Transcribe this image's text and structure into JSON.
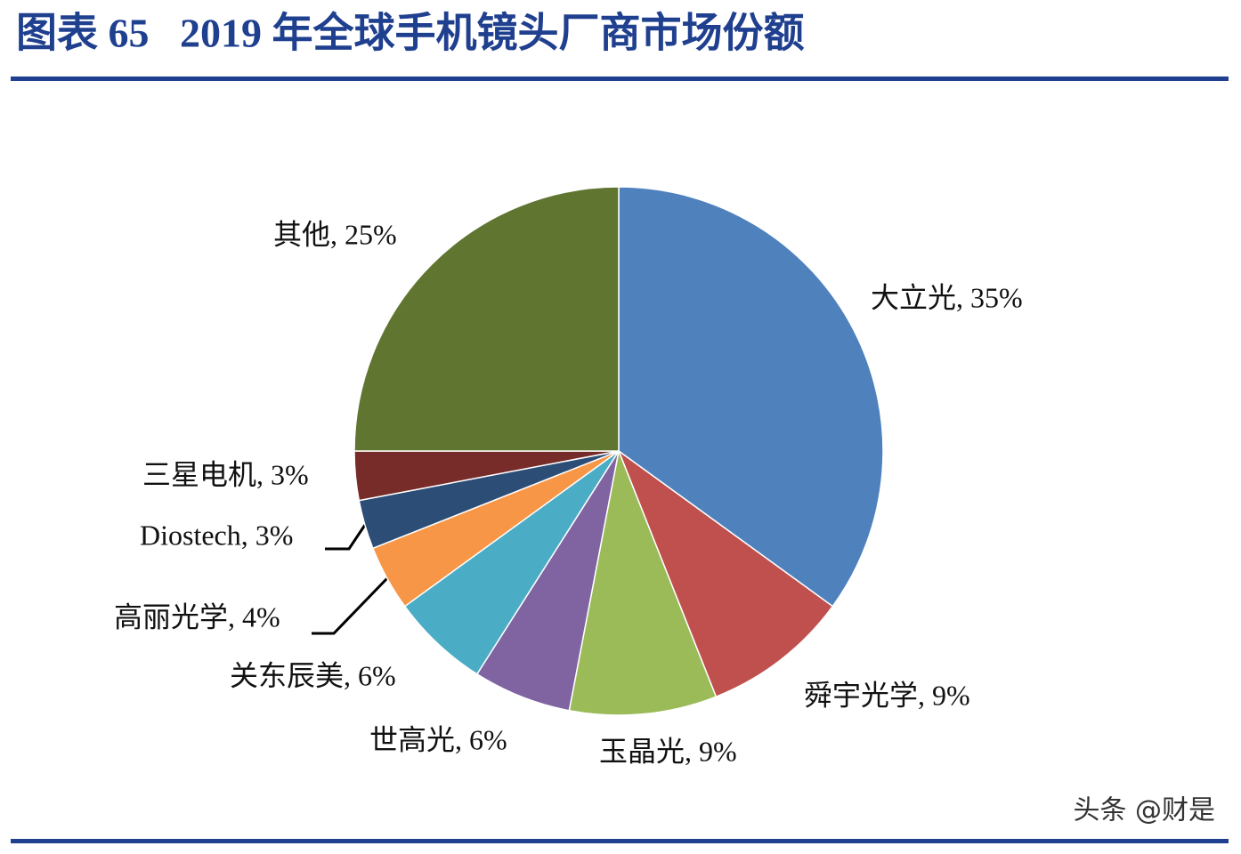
{
  "title": "图表 65   2019 年全球手机镜头厂商市场份额",
  "chart_data": {
    "type": "pie",
    "labels": [
      "大立光, 35%",
      "舜宇光学, 9%",
      "玉晶光, 9%",
      "世高光, 6%",
      "关东辰美, 6%",
      "高丽光学, 4%",
      "Diostech, 3%",
      "三星电机, 3%",
      "其他, 25%"
    ],
    "values": [
      35,
      9,
      9,
      6,
      6,
      4,
      3,
      3,
      25
    ],
    "colors": [
      "#4f81bd",
      "#c0504d",
      "#9bbb59",
      "#8064a2",
      "#4bacc6",
      "#f79646",
      "#2c4d75",
      "#772c2a",
      "#5f7530"
    ]
  },
  "watermark": "头条 @财是"
}
